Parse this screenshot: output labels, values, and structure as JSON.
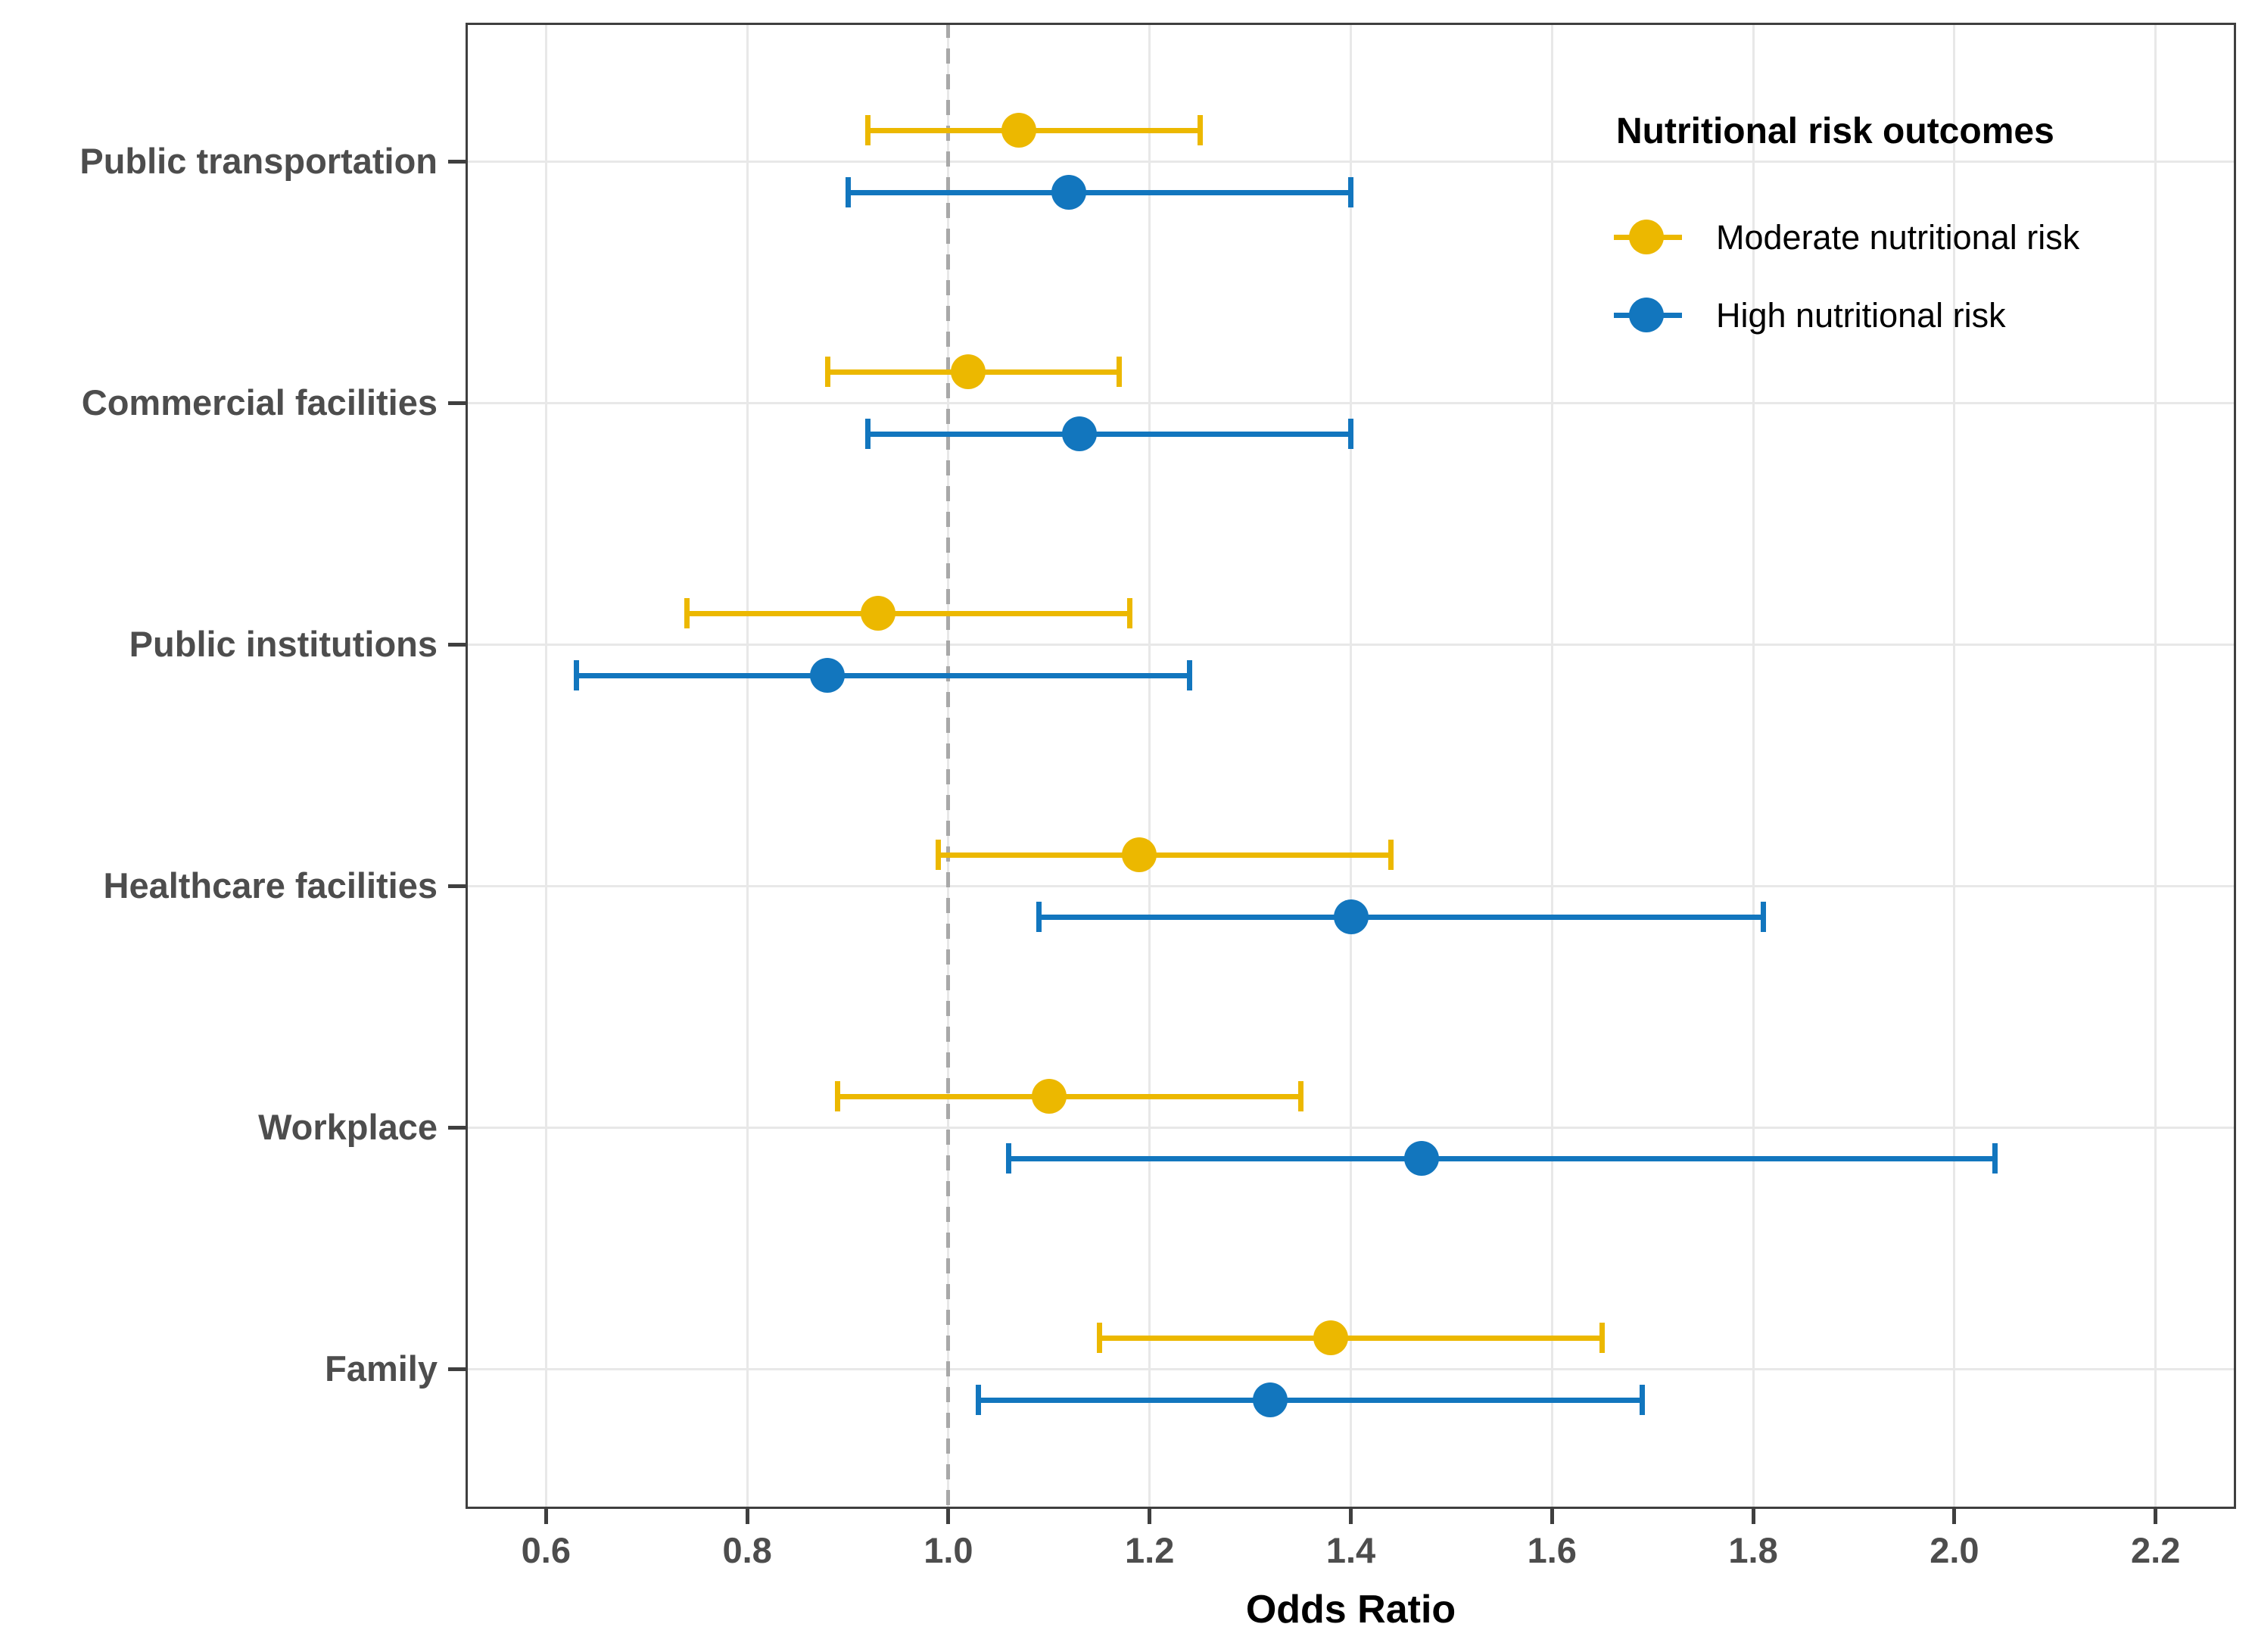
{
  "figure_title": "",
  "chart_data": {
    "type": "scatter",
    "subtype": "forest-plot-odds-ratios-with-95ci-error-bars",
    "title": "",
    "xlabel": "Odds Ratio",
    "ylabel": "",
    "categories": [
      "Public transportation",
      "Commercial facilities",
      "Public institutions",
      "Healthcare facilities",
      "Workplace",
      "Family"
    ],
    "x_ticks": [
      "0.6",
      "0.8",
      "1.0",
      "1.2",
      "1.4",
      "1.6",
      "1.8",
      "2.0",
      "2.2"
    ],
    "x_tick_values": [
      0.6,
      0.8,
      1.0,
      1.2,
      1.4,
      1.6,
      1.8,
      2.0,
      2.2
    ],
    "xlim": [
      0.52,
      2.28
    ],
    "reference_line_x": 1.0,
    "grid": "major-only",
    "legend_title": "Nutritional risk outcomes",
    "legend_position": "inside-top-right",
    "series": [
      {
        "name": "Moderate nutritional risk",
        "color": "#ECB800",
        "points": [
          {
            "category": "Public transportation",
            "or": 1.07,
            "ci_low": 0.92,
            "ci_high": 1.25
          },
          {
            "category": "Commercial facilities",
            "or": 1.02,
            "ci_low": 0.88,
            "ci_high": 1.17
          },
          {
            "category": "Public institutions",
            "or": 0.93,
            "ci_low": 0.74,
            "ci_high": 1.18
          },
          {
            "category": "Healthcare facilities",
            "or": 1.19,
            "ci_low": 0.99,
            "ci_high": 1.44
          },
          {
            "category": "Workplace",
            "or": 1.1,
            "ci_low": 0.89,
            "ci_high": 1.35
          },
          {
            "category": "Family",
            "or": 1.38,
            "ci_low": 1.15,
            "ci_high": 1.65
          }
        ]
      },
      {
        "name": "High nutritional risk",
        "color": "#1276BE",
        "points": [
          {
            "category": "Public transportation",
            "or": 1.12,
            "ci_low": 0.9,
            "ci_high": 1.4
          },
          {
            "category": "Commercial facilities",
            "or": 1.13,
            "ci_low": 0.92,
            "ci_high": 1.4
          },
          {
            "category": "Public institutions",
            "or": 0.88,
            "ci_low": 0.63,
            "ci_high": 1.24
          },
          {
            "category": "Healthcare facilities",
            "or": 1.4,
            "ci_low": 1.09,
            "ci_high": 1.81
          },
          {
            "category": "Workplace",
            "or": 1.47,
            "ci_low": 1.06,
            "ci_high": 2.04
          },
          {
            "category": "Family",
            "or": 1.32,
            "ci_low": 1.03,
            "ci_high": 1.69
          }
        ]
      }
    ],
    "colors": {
      "moderate_series": "#ECB800",
      "high_series": "#1276BE",
      "gridline": "#E8E8E8",
      "panel_border": "#3F3F3F",
      "axis_tick": "#3F3F3F",
      "axis_text": "#4D4D4D",
      "category_text": "#4D4D4D",
      "reference_line": "#A8A8A8",
      "background": "#FFFFFF"
    }
  }
}
